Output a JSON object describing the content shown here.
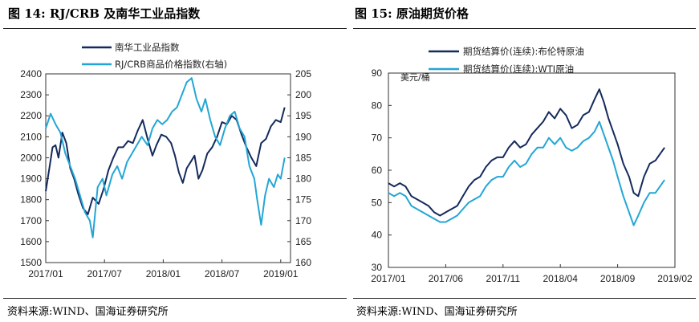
{
  "figure1": {
    "title": "图 14:  RJ/CRB 及南华工业品指数",
    "footer": "资料来源:WIND、国海证券研究所"
  },
  "figure2": {
    "title": "图 15:  原油期货价格",
    "footer": "资料来源:WIND、国海证券研究所"
  },
  "colors": {
    "navy": "#142a5c",
    "cyan": "#23a6d6"
  },
  "chart_data": [
    {
      "type": "line",
      "title": "",
      "xlabel": "",
      "x_ticks": [
        "2017/01",
        "2017/07",
        "2018/01",
        "2018/07",
        "2019/01"
      ],
      "x_range": [
        "2017-01",
        "2019-02"
      ],
      "y_left": {
        "ticks": [
          "1500",
          "1600",
          "1700",
          "1800",
          "1900",
          "2000",
          "2100",
          "2200",
          "2300",
          "2400"
        ],
        "lim": [
          1500,
          2400
        ]
      },
      "y_right": {
        "ticks": [
          "160",
          "165",
          "170",
          "175",
          "180",
          "185",
          "190",
          "195",
          "200",
          "205"
        ],
        "lim": [
          160,
          205
        ]
      },
      "grid": false,
      "legend_position": "top-center",
      "series": [
        {
          "name": "南华工业品指数",
          "axis": "left",
          "color": "#142a5c",
          "points": [
            [
              0,
              1840
            ],
            [
              0.3,
              1930
            ],
            [
              0.7,
              2050
            ],
            [
              1.0,
              2060
            ],
            [
              1.3,
              2000
            ],
            [
              1.7,
              2120
            ],
            [
              2.1,
              2070
            ],
            [
              2.5,
              1950
            ],
            [
              2.9,
              1900
            ],
            [
              3.3,
              1830
            ],
            [
              3.8,
              1760
            ],
            [
              4.3,
              1730
            ],
            [
              4.8,
              1810
            ],
            [
              5.4,
              1780
            ],
            [
              5.9,
              1850
            ],
            [
              6.4,
              1940
            ],
            [
              6.9,
              2000
            ],
            [
              7.4,
              2050
            ],
            [
              7.9,
              2050
            ],
            [
              8.4,
              2080
            ],
            [
              8.9,
              2070
            ],
            [
              9.4,
              2130
            ],
            [
              9.9,
              2180
            ],
            [
              10.4,
              2090
            ],
            [
              10.9,
              2010
            ],
            [
              11.3,
              2060
            ],
            [
              11.8,
              2110
            ],
            [
              12.3,
              2100
            ],
            [
              12.8,
              2070
            ],
            [
              13.2,
              2010
            ],
            [
              13.6,
              1930
            ],
            [
              14.0,
              1880
            ],
            [
              14.4,
              1950
            ],
            [
              14.8,
              1980
            ],
            [
              15.2,
              2010
            ],
            [
              15.6,
              1900
            ],
            [
              16.0,
              1940
            ],
            [
              16.5,
              2020
            ],
            [
              17.0,
              2050
            ],
            [
              17.5,
              2100
            ],
            [
              18.0,
              2170
            ],
            [
              18.5,
              2160
            ],
            [
              19.0,
              2200
            ],
            [
              19.5,
              2180
            ],
            [
              20.0,
              2110
            ],
            [
              20.5,
              2050
            ],
            [
              21.0,
              2000
            ],
            [
              21.5,
              1960
            ],
            [
              22.0,
              2070
            ],
            [
              22.5,
              2090
            ],
            [
              23.0,
              2150
            ],
            [
              23.5,
              2180
            ],
            [
              24.0,
              2170
            ],
            [
              24.4,
              2240
            ]
          ]
        },
        {
          "name": "RJ/CRB商品价格指数(右轴)",
          "axis": "right",
          "color": "#23a6d6",
          "points": [
            [
              0,
              192
            ],
            [
              0.5,
              195.5
            ],
            [
              1.0,
              193
            ],
            [
              1.5,
              191
            ],
            [
              2.0,
              186
            ],
            [
              2.5,
              183
            ],
            [
              3.0,
              180
            ],
            [
              3.5,
              176
            ],
            [
              4.0,
              172
            ],
            [
              4.5,
              170
            ],
            [
              4.8,
              166
            ],
            [
              5.3,
              178
            ],
            [
              5.8,
              180
            ],
            [
              6.2,
              176
            ],
            [
              6.8,
              181
            ],
            [
              7.3,
              183
            ],
            [
              7.8,
              180
            ],
            [
              8.3,
              184
            ],
            [
              8.8,
              186
            ],
            [
              9.3,
              188
            ],
            [
              9.8,
              190
            ],
            [
              10.4,
              188
            ],
            [
              10.9,
              192
            ],
            [
              11.4,
              194
            ],
            [
              11.9,
              193
            ],
            [
              12.4,
              194
            ],
            [
              12.9,
              196
            ],
            [
              13.4,
              197
            ],
            [
              13.9,
              200
            ],
            [
              14.4,
              203
            ],
            [
              14.9,
              204
            ],
            [
              15.4,
              199
            ],
            [
              15.9,
              196
            ],
            [
              16.3,
              199
            ],
            [
              16.8,
              194
            ],
            [
              17.3,
              190
            ],
            [
              17.8,
              188
            ],
            [
              18.3,
              192
            ],
            [
              18.8,
              195
            ],
            [
              19.3,
              196
            ],
            [
              19.8,
              192
            ],
            [
              20.3,
              190
            ],
            [
              20.8,
              183
            ],
            [
              21.3,
              180
            ],
            [
              21.6,
              175
            ],
            [
              22.0,
              169
            ],
            [
              22.4,
              176
            ],
            [
              22.8,
              180
            ],
            [
              23.3,
              178
            ],
            [
              23.7,
              181
            ],
            [
              24.0,
              180
            ],
            [
              24.4,
              185
            ]
          ]
        }
      ]
    },
    {
      "type": "line",
      "title": "",
      "xlabel": "",
      "ylabel": "美元/桶",
      "x_ticks": [
        "2017/01",
        "2017/06",
        "2017/11",
        "2018/04",
        "2018/09",
        "2019/02"
      ],
      "x_range": [
        "2017-01",
        "2019-02"
      ],
      "y": {
        "ticks": [
          "30",
          "40",
          "50",
          "60",
          "70",
          "80",
          "90"
        ],
        "lim": [
          30,
          90
        ]
      },
      "grid": false,
      "legend_position": "top-left",
      "series": [
        {
          "name": "期货结算价(连续):布伦特原油",
          "color": "#142a5c",
          "points": [
            [
              0,
              56
            ],
            [
              0.5,
              55
            ],
            [
              1.0,
              56
            ],
            [
              1.5,
              55
            ],
            [
              2.0,
              52
            ],
            [
              2.5,
              51
            ],
            [
              3.0,
              50
            ],
            [
              3.5,
              49
            ],
            [
              4.0,
              47
            ],
            [
              4.5,
              46
            ],
            [
              5.0,
              47
            ],
            [
              5.5,
              48
            ],
            [
              6.0,
              49
            ],
            [
              6.5,
              52
            ],
            [
              7.0,
              55
            ],
            [
              7.5,
              57
            ],
            [
              8.0,
              58
            ],
            [
              8.5,
              61
            ],
            [
              9.0,
              63
            ],
            [
              9.5,
              64
            ],
            [
              10.0,
              64
            ],
            [
              10.5,
              67
            ],
            [
              11.0,
              69
            ],
            [
              11.5,
              67
            ],
            [
              12.0,
              68
            ],
            [
              12.5,
              71
            ],
            [
              13.0,
              73
            ],
            [
              13.5,
              75
            ],
            [
              14.0,
              78
            ],
            [
              14.5,
              76
            ],
            [
              15.0,
              79
            ],
            [
              15.5,
              77
            ],
            [
              16.0,
              73
            ],
            [
              16.5,
              74
            ],
            [
              17.0,
              77
            ],
            [
              17.5,
              78
            ],
            [
              18.0,
              82
            ],
            [
              18.4,
              85
            ],
            [
              18.8,
              81
            ],
            [
              19.2,
              76
            ],
            [
              19.6,
              72
            ],
            [
              20.0,
              68
            ],
            [
              20.5,
              62
            ],
            [
              21.0,
              58
            ],
            [
              21.4,
              53
            ],
            [
              21.8,
              52
            ],
            [
              22.3,
              58
            ],
            [
              22.8,
              62
            ],
            [
              23.3,
              63
            ],
            [
              23.7,
              65
            ],
            [
              24.1,
              67
            ]
          ]
        },
        {
          "name": "期货结算价(连续):WTI原油",
          "color": "#23a6d6",
          "points": [
            [
              0,
              53
            ],
            [
              0.5,
              52
            ],
            [
              1.0,
              53
            ],
            [
              1.5,
              52
            ],
            [
              2.0,
              49
            ],
            [
              2.5,
              48
            ],
            [
              3.0,
              47
            ],
            [
              3.5,
              46
            ],
            [
              4.0,
              45
            ],
            [
              4.5,
              44
            ],
            [
              5.0,
              44
            ],
            [
              5.5,
              45
            ],
            [
              6.0,
              46
            ],
            [
              6.5,
              48
            ],
            [
              7.0,
              50
            ],
            [
              7.5,
              51
            ],
            [
              8.0,
              52
            ],
            [
              8.5,
              55
            ],
            [
              9.0,
              57
            ],
            [
              9.5,
              58
            ],
            [
              10.0,
              58
            ],
            [
              10.5,
              61
            ],
            [
              11.0,
              63
            ],
            [
              11.5,
              61
            ],
            [
              12.0,
              62
            ],
            [
              12.5,
              65
            ],
            [
              13.0,
              67
            ],
            [
              13.5,
              67
            ],
            [
              14.0,
              70
            ],
            [
              14.5,
              68
            ],
            [
              15.0,
              70
            ],
            [
              15.5,
              67
            ],
            [
              16.0,
              66
            ],
            [
              16.5,
              67
            ],
            [
              17.0,
              69
            ],
            [
              17.5,
              70
            ],
            [
              18.0,
              72
            ],
            [
              18.4,
              75
            ],
            [
              18.8,
              71
            ],
            [
              19.2,
              67
            ],
            [
              19.6,
              63
            ],
            [
              20.0,
              58
            ],
            [
              20.5,
              52
            ],
            [
              21.0,
              47
            ],
            [
              21.4,
              43
            ],
            [
              21.8,
              46
            ],
            [
              22.3,
              50
            ],
            [
              22.8,
              53
            ],
            [
              23.3,
              53
            ],
            [
              23.7,
              55
            ],
            [
              24.1,
              57
            ]
          ]
        }
      ]
    }
  ]
}
